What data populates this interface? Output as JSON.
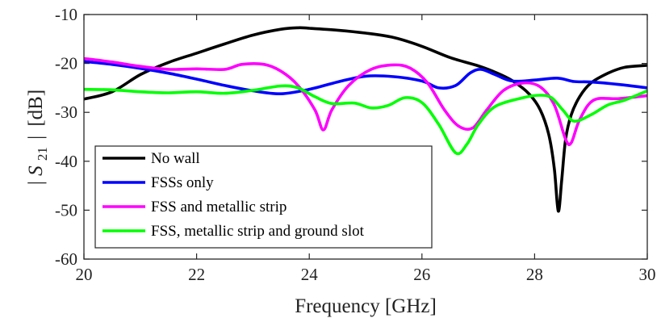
{
  "chart_data": {
    "type": "line",
    "title": "",
    "xlabel": "Frequency [GHz]",
    "ylabel": "|S21| [dB]",
    "ylabel_main": "S",
    "ylabel_sub": "21",
    "ylabel_unit": "[dB]",
    "xlim": [
      20,
      30
    ],
    "ylim": [
      -60,
      -10
    ],
    "xticks": [
      20,
      22,
      24,
      26,
      28,
      30
    ],
    "yticks": [
      -10,
      -20,
      -30,
      -40,
      -50,
      -60
    ],
    "grid": false,
    "legend_position": "bottom-left",
    "series": [
      {
        "name": "No wall",
        "color": "#000000",
        "points": [
          [
            20,
            -27.3
          ],
          [
            20.5,
            -25.8
          ],
          [
            21,
            -22.3
          ],
          [
            21.5,
            -19.8
          ],
          [
            22,
            -17.9
          ],
          [
            22.5,
            -16.0
          ],
          [
            23,
            -14.2
          ],
          [
            23.5,
            -13.0
          ],
          [
            23.8,
            -12.7
          ],
          [
            24,
            -12.8
          ],
          [
            24.5,
            -13.2
          ],
          [
            25,
            -13.8
          ],
          [
            25.5,
            -14.7
          ],
          [
            26,
            -16.5
          ],
          [
            26.5,
            -18.8
          ],
          [
            27,
            -20.5
          ],
          [
            27.3,
            -21.8
          ],
          [
            27.6,
            -23.5
          ],
          [
            27.9,
            -26.2
          ],
          [
            28.1,
            -29.5
          ],
          [
            28.25,
            -34.5
          ],
          [
            28.35,
            -41.5
          ],
          [
            28.42,
            -50.2
          ],
          [
            28.48,
            -44.0
          ],
          [
            28.55,
            -35.5
          ],
          [
            28.65,
            -30.5
          ],
          [
            28.8,
            -26.8
          ],
          [
            29,
            -24.0
          ],
          [
            29.3,
            -22.0
          ],
          [
            29.6,
            -20.8
          ],
          [
            30,
            -20.4
          ]
        ]
      },
      {
        "name": "FSSs only",
        "color": "#0000ff",
        "points": [
          [
            20,
            -19.6
          ],
          [
            20.5,
            -20.2
          ],
          [
            21,
            -21.0
          ],
          [
            21.5,
            -22.0
          ],
          [
            22,
            -23.2
          ],
          [
            22.5,
            -24.5
          ],
          [
            23,
            -25.6
          ],
          [
            23.5,
            -26.2
          ],
          [
            24,
            -25.3
          ],
          [
            24.5,
            -23.8
          ],
          [
            25,
            -22.6
          ],
          [
            25.5,
            -22.7
          ],
          [
            26,
            -23.6
          ],
          [
            26.3,
            -25.0
          ],
          [
            26.6,
            -24.5
          ],
          [
            26.85,
            -22.0
          ],
          [
            27.05,
            -21.2
          ],
          [
            27.3,
            -22.3
          ],
          [
            27.6,
            -23.6
          ],
          [
            28,
            -23.4
          ],
          [
            28.4,
            -23.0
          ],
          [
            28.7,
            -23.7
          ],
          [
            29,
            -23.8
          ],
          [
            29.5,
            -24.3
          ],
          [
            30,
            -25.0
          ]
        ]
      },
      {
        "name": "FSS and metallic strip",
        "color": "#ff00ff",
        "points": [
          [
            20,
            -19.0
          ],
          [
            20.5,
            -19.7
          ],
          [
            21,
            -20.6
          ],
          [
            21.5,
            -21.2
          ],
          [
            22,
            -21.1
          ],
          [
            22.5,
            -21.2
          ],
          [
            22.8,
            -20.2
          ],
          [
            23.2,
            -20.2
          ],
          [
            23.5,
            -21.6
          ],
          [
            23.8,
            -24.5
          ],
          [
            24.1,
            -29.5
          ],
          [
            24.25,
            -33.6
          ],
          [
            24.4,
            -29.5
          ],
          [
            24.7,
            -24.5
          ],
          [
            25.1,
            -21.2
          ],
          [
            25.5,
            -20.3
          ],
          [
            25.8,
            -21.0
          ],
          [
            26.1,
            -24.0
          ],
          [
            26.4,
            -29.5
          ],
          [
            26.65,
            -32.8
          ],
          [
            26.9,
            -33.2
          ],
          [
            27.15,
            -29.5
          ],
          [
            27.45,
            -25.5
          ],
          [
            27.8,
            -24.0
          ],
          [
            28.1,
            -24.8
          ],
          [
            28.35,
            -28.5
          ],
          [
            28.55,
            -35.5
          ],
          [
            28.65,
            -36.2
          ],
          [
            28.8,
            -31.5
          ],
          [
            29.05,
            -27.5
          ],
          [
            29.5,
            -27.2
          ],
          [
            30,
            -26.6
          ]
        ]
      },
      {
        "name": "FSS, metallic strip and ground slot",
        "color": "#00ff00",
        "points": [
          [
            20,
            -25.3
          ],
          [
            20.5,
            -25.4
          ],
          [
            21,
            -25.8
          ],
          [
            21.5,
            -26.0
          ],
          [
            22,
            -25.8
          ],
          [
            22.5,
            -26.1
          ],
          [
            23,
            -25.5
          ],
          [
            23.5,
            -24.6
          ],
          [
            23.8,
            -25.0
          ],
          [
            24.1,
            -26.8
          ],
          [
            24.4,
            -28.2
          ],
          [
            24.8,
            -28.1
          ],
          [
            25.1,
            -29.1
          ],
          [
            25.4,
            -28.6
          ],
          [
            25.7,
            -27.0
          ],
          [
            26,
            -28.0
          ],
          [
            26.3,
            -32.5
          ],
          [
            26.6,
            -38.3
          ],
          [
            26.8,
            -36.5
          ],
          [
            27.0,
            -32.5
          ],
          [
            27.3,
            -28.8
          ],
          [
            27.8,
            -27.0
          ],
          [
            28.1,
            -26.5
          ],
          [
            28.3,
            -27.0
          ],
          [
            28.5,
            -29.5
          ],
          [
            28.7,
            -31.8
          ],
          [
            29.0,
            -30.5
          ],
          [
            29.3,
            -28.5
          ],
          [
            29.6,
            -27.5
          ],
          [
            30,
            -25.6
          ]
        ]
      }
    ]
  }
}
